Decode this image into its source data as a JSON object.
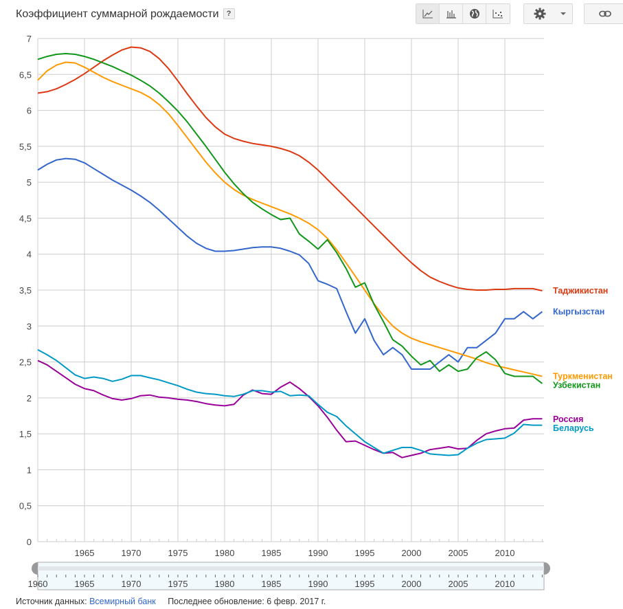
{
  "header": {
    "title": "Коэффициент суммарной рождаемости",
    "help_label": "?"
  },
  "toolbar": {
    "chart_types": [
      {
        "name": "line-chart-icon",
        "active": true
      },
      {
        "name": "bar-chart-icon",
        "active": false
      },
      {
        "name": "map-globe-icon",
        "active": false
      },
      {
        "name": "scatter-chart-icon",
        "active": false
      }
    ],
    "settings_icon": "gear-icon",
    "dropdown_icon": "caret-down-icon",
    "link_icon": "link-icon"
  },
  "footer": {
    "source_label": "Источник данных:",
    "source_link": "Всемирный банк",
    "updated": "Последнее обновление: 6 февр. 2017 г."
  },
  "chart_data": {
    "type": "line",
    "title": "Коэффициент суммарной рождаемости",
    "xlabel": "",
    "ylabel": "",
    "xlim": [
      1960,
      2014
    ],
    "ylim": [
      0,
      7
    ],
    "grid": true,
    "legend": "right (inline labels at line ends)",
    "y_ticks": [
      "0",
      "0,5",
      "1",
      "1,5",
      "2",
      "2,5",
      "3",
      "3,5",
      "4",
      "4,5",
      "5",
      "5,5",
      "6",
      "6,5",
      "7"
    ],
    "x_ticks": [
      "1965",
      "1970",
      "1975",
      "1980",
      "1985",
      "1990",
      "1995",
      "2000",
      "2005",
      "2010"
    ],
    "range_slider": {
      "start": 1960,
      "end": 2014,
      "labels": [
        "1960",
        "1965",
        "1970",
        "1975",
        "1980",
        "1985",
        "1990",
        "1995",
        "2000",
        "2005",
        "2010"
      ]
    },
    "x": [
      1960,
      1961,
      1962,
      1963,
      1964,
      1965,
      1966,
      1967,
      1968,
      1969,
      1970,
      1971,
      1972,
      1973,
      1974,
      1975,
      1976,
      1977,
      1978,
      1979,
      1980,
      1981,
      1982,
      1983,
      1984,
      1985,
      1986,
      1987,
      1988,
      1989,
      1990,
      1991,
      1992,
      1993,
      1994,
      1995,
      1996,
      1997,
      1998,
      1999,
      2000,
      2001,
      2002,
      2003,
      2004,
      2005,
      2006,
      2007,
      2008,
      2009,
      2010,
      2011,
      2012,
      2013,
      2014
    ],
    "series": [
      {
        "name": "Таджикистан",
        "color": "#dc3912",
        "label_value": 3.49,
        "values": [
          6.24,
          6.26,
          6.3,
          6.36,
          6.43,
          6.51,
          6.6,
          6.69,
          6.77,
          6.84,
          6.88,
          6.87,
          6.82,
          6.72,
          6.58,
          6.41,
          6.23,
          6.06,
          5.9,
          5.77,
          5.67,
          5.61,
          5.57,
          5.54,
          5.52,
          5.5,
          5.47,
          5.43,
          5.37,
          5.28,
          5.17,
          5.04,
          4.91,
          4.78,
          4.65,
          4.52,
          4.39,
          4.26,
          4.13,
          4.0,
          3.88,
          3.77,
          3.68,
          3.62,
          3.57,
          3.53,
          3.51,
          3.5,
          3.5,
          3.51,
          3.51,
          3.52,
          3.52,
          3.52,
          3.49
        ]
      },
      {
        "name": "Кыргызстан",
        "color": "#3366cc",
        "label_value": 3.2,
        "values": [
          5.17,
          5.25,
          5.31,
          5.33,
          5.32,
          5.27,
          5.19,
          5.11,
          5.03,
          4.96,
          4.89,
          4.81,
          4.72,
          4.61,
          4.49,
          4.37,
          4.25,
          4.15,
          4.08,
          4.04,
          4.04,
          4.05,
          4.07,
          4.09,
          4.1,
          4.1,
          4.08,
          4.04,
          3.99,
          3.87,
          3.63,
          3.58,
          3.52,
          3.2,
          2.9,
          3.1,
          2.8,
          2.6,
          2.7,
          2.6,
          2.4,
          2.4,
          2.4,
          2.5,
          2.6,
          2.5,
          2.7,
          2.7,
          2.8,
          2.9,
          3.1,
          3.1,
          3.2,
          3.1,
          3.2
        ]
      },
      {
        "name": "Туркменистан",
        "color": "#ff9900",
        "label_value": 2.3,
        "values": [
          6.42,
          6.55,
          6.63,
          6.67,
          6.66,
          6.6,
          6.53,
          6.46,
          6.4,
          6.35,
          6.3,
          6.25,
          6.18,
          6.08,
          5.95,
          5.79,
          5.62,
          5.45,
          5.28,
          5.13,
          5.0,
          4.9,
          4.82,
          4.76,
          4.71,
          4.66,
          4.61,
          4.56,
          4.5,
          4.43,
          4.34,
          4.22,
          4.06,
          3.88,
          3.69,
          3.5,
          3.31,
          3.14,
          3.0,
          2.9,
          2.83,
          2.78,
          2.74,
          2.7,
          2.66,
          2.62,
          2.58,
          2.54,
          2.49,
          2.45,
          2.42,
          2.39,
          2.36,
          2.33,
          2.3
        ]
      },
      {
        "name": "Узбекистан",
        "color": "#109618",
        "label_value": 2.2,
        "values": [
          6.71,
          6.75,
          6.78,
          6.79,
          6.78,
          6.75,
          6.71,
          6.66,
          6.61,
          6.55,
          6.49,
          6.42,
          6.34,
          6.24,
          6.12,
          5.99,
          5.84,
          5.67,
          5.5,
          5.32,
          5.14,
          4.98,
          4.84,
          4.72,
          4.63,
          4.55,
          4.48,
          4.5,
          4.28,
          4.18,
          4.07,
          4.2,
          4.02,
          3.8,
          3.54,
          3.6,
          3.3,
          3.06,
          2.81,
          2.72,
          2.58,
          2.46,
          2.52,
          2.37,
          2.46,
          2.37,
          2.4,
          2.56,
          2.64,
          2.53,
          2.34,
          2.3,
          2.3,
          2.3,
          2.2
        ]
      },
      {
        "name": "Россия",
        "color": "#990099",
        "label_value": 1.7,
        "values": [
          2.52,
          2.46,
          2.37,
          2.28,
          2.19,
          2.13,
          2.1,
          2.04,
          1.99,
          1.97,
          1.99,
          2.03,
          2.04,
          2.01,
          2.0,
          1.98,
          1.97,
          1.95,
          1.92,
          1.9,
          1.89,
          1.91,
          2.04,
          2.11,
          2.06,
          2.05,
          2.15,
          2.22,
          2.13,
          2.02,
          1.89,
          1.73,
          1.55,
          1.39,
          1.4,
          1.34,
          1.28,
          1.23,
          1.24,
          1.17,
          1.2,
          1.23,
          1.28,
          1.3,
          1.32,
          1.29,
          1.3,
          1.41,
          1.5,
          1.54,
          1.57,
          1.58,
          1.69,
          1.71,
          1.71
        ]
      },
      {
        "name": "Беларусь",
        "color": "#0099c6",
        "label_value": 1.62,
        "values": [
          2.67,
          2.6,
          2.52,
          2.42,
          2.32,
          2.27,
          2.29,
          2.27,
          2.23,
          2.26,
          2.31,
          2.31,
          2.28,
          2.25,
          2.21,
          2.17,
          2.12,
          2.08,
          2.06,
          2.05,
          2.03,
          2.02,
          2.05,
          2.1,
          2.1,
          2.08,
          2.09,
          2.03,
          2.04,
          2.03,
          1.91,
          1.8,
          1.74,
          1.61,
          1.5,
          1.39,
          1.31,
          1.23,
          1.27,
          1.31,
          1.31,
          1.27,
          1.22,
          1.21,
          1.2,
          1.21,
          1.3,
          1.37,
          1.42,
          1.43,
          1.44,
          1.51,
          1.63,
          1.62,
          1.62
        ]
      }
    ]
  }
}
